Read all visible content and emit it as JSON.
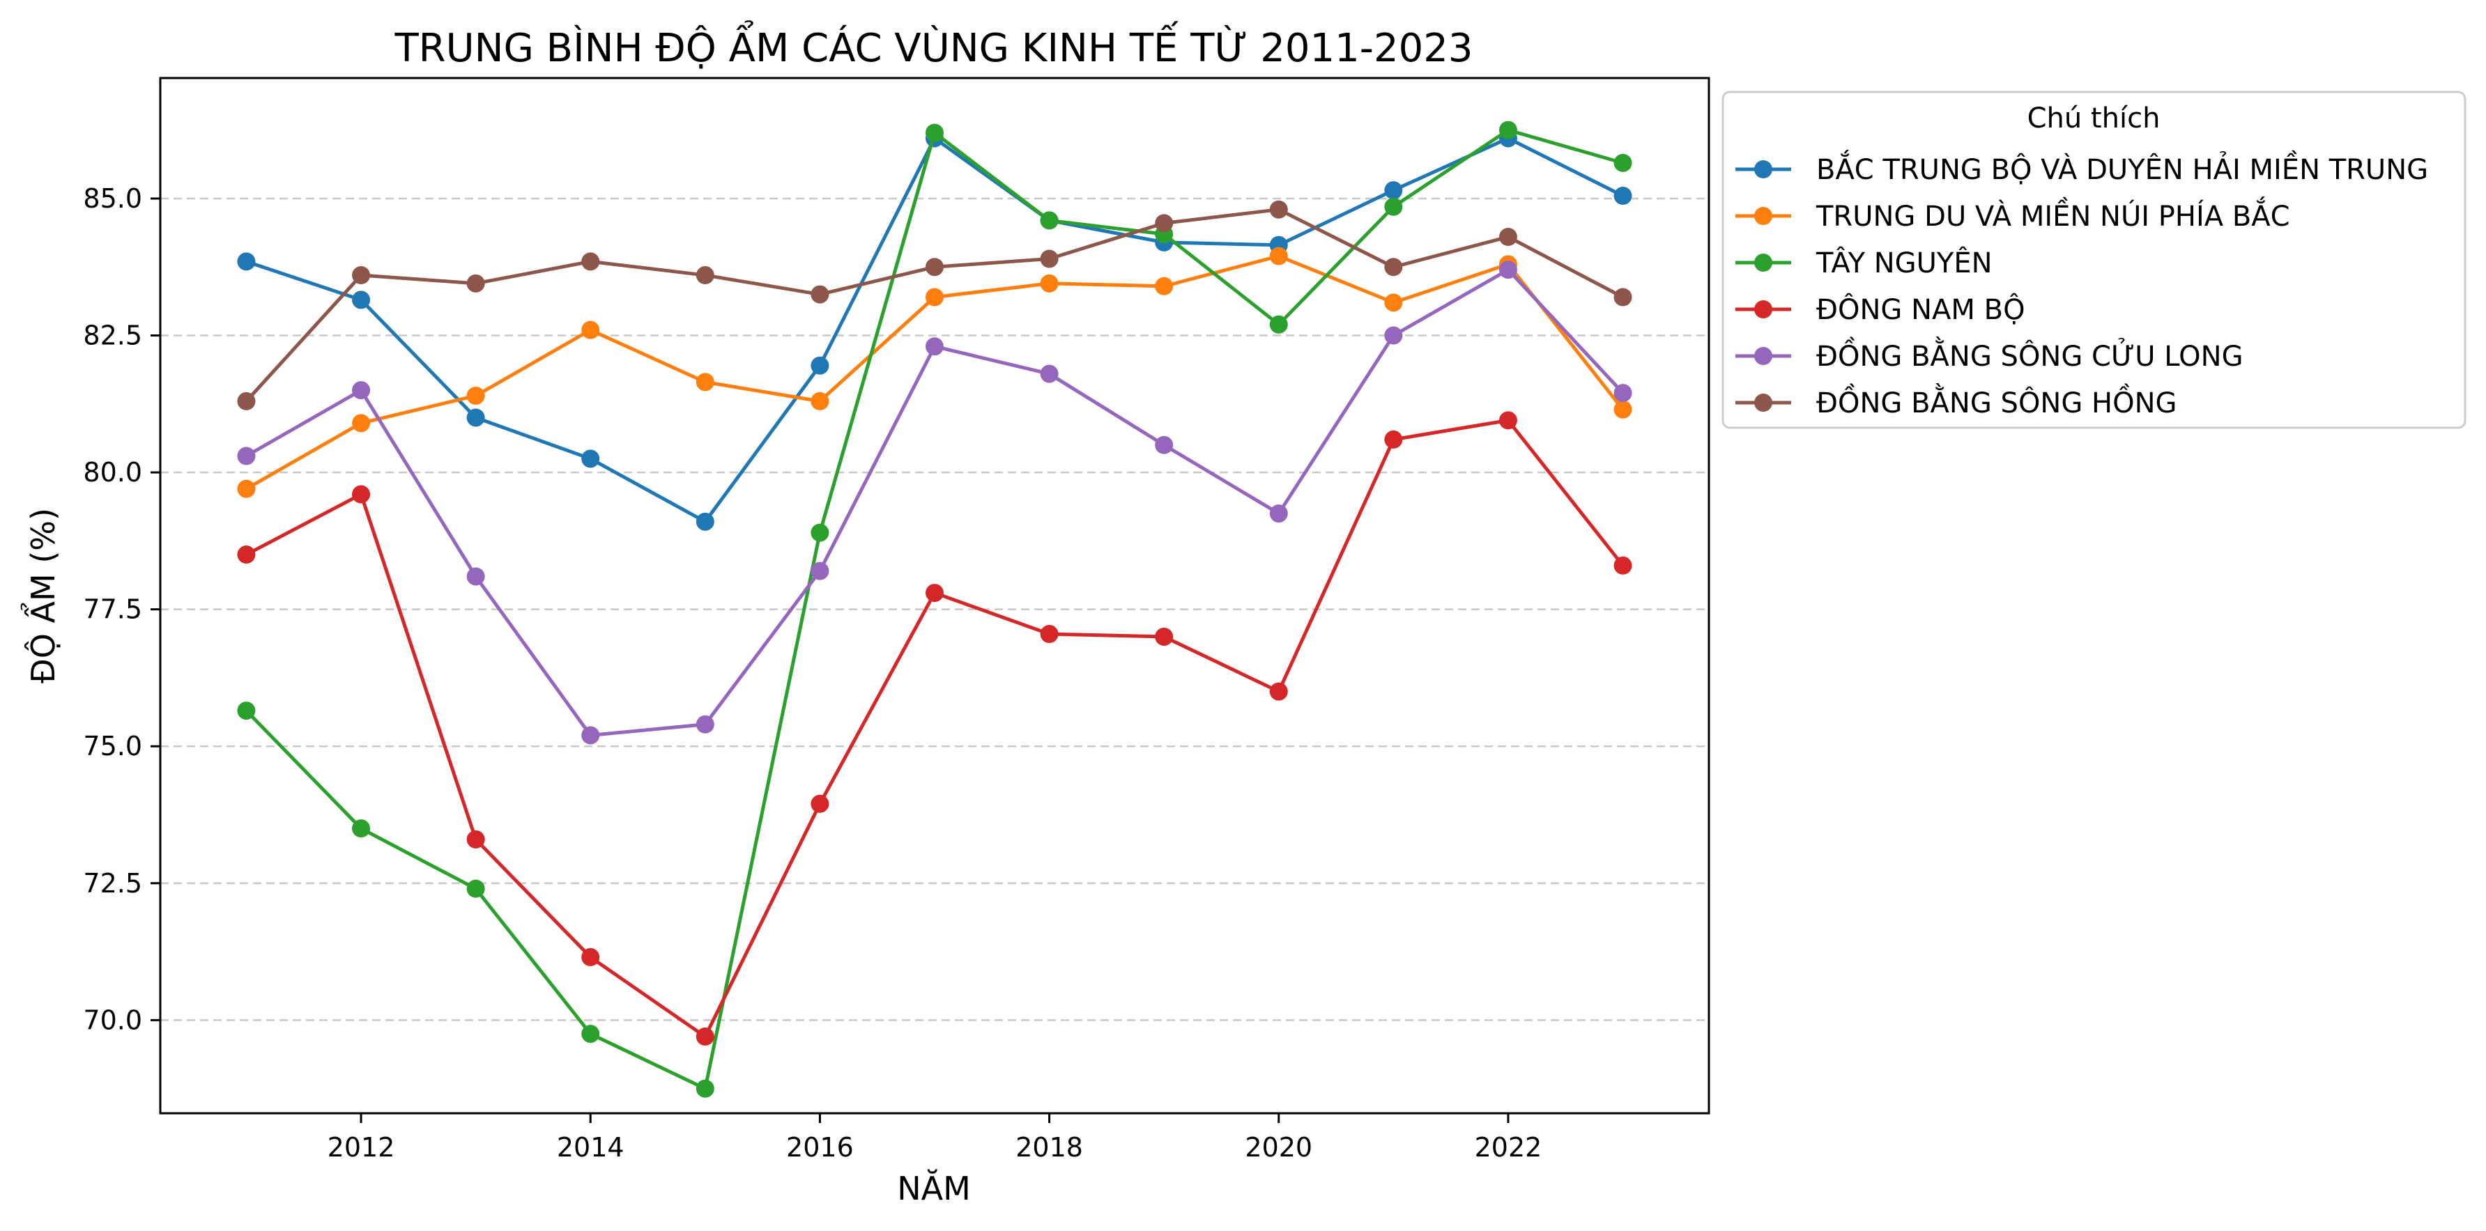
{
  "chart_data": {
    "type": "line",
    "title": "TRUNG BÌNH ĐỘ ẨM CÁC VÙNG KINH TẾ TỪ 2011-2023",
    "xlabel": "NĂM",
    "ylabel": "ĐỘ ẨM (%)",
    "xlim": [
      2010.25,
      2023.75
    ],
    "ylim": [
      68.3,
      87.2
    ],
    "x": [
      2011,
      2012,
      2013,
      2014,
      2015,
      2016,
      2017,
      2018,
      2019,
      2020,
      2021,
      2022,
      2023
    ],
    "x_ticks": [
      2012,
      2014,
      2016,
      2018,
      2020,
      2022
    ],
    "x_tick_labels": [
      "2012",
      "2014",
      "2016",
      "2018",
      "2020",
      "2022"
    ],
    "y_ticks": [
      70.0,
      72.5,
      75.0,
      77.5,
      80.0,
      82.5,
      85.0
    ],
    "y_tick_labels": [
      "70.0",
      "72.5",
      "75.0",
      "77.5",
      "80.0",
      "82.5",
      "85.0"
    ],
    "grid": {
      "axis": "y",
      "style": "dashed",
      "color": "#c8c8c8"
    },
    "legend": {
      "title": "Chú thích",
      "placement": "outside-top-right"
    },
    "series": [
      {
        "name": "BẮC TRUNG BỘ VÀ DUYÊN HẢI MIỀN TRUNG",
        "color": "#1f77b4",
        "values": [
          83.85,
          83.15,
          81.0,
          80.25,
          79.1,
          81.95,
          86.1,
          84.6,
          84.2,
          84.15,
          85.15,
          86.1,
          85.05
        ]
      },
      {
        "name": "TRUNG DU VÀ MIỀN NÚI PHÍA BẮC",
        "color": "#ff7f0e",
        "values": [
          79.7,
          80.9,
          81.4,
          82.6,
          81.65,
          81.3,
          83.2,
          83.45,
          83.4,
          83.95,
          83.1,
          83.8,
          81.15
        ]
      },
      {
        "name": "TÂY NGUYÊN",
        "color": "#2ca02c",
        "values": [
          75.65,
          73.5,
          72.4,
          69.75,
          68.75,
          78.9,
          86.2,
          84.6,
          84.35,
          82.7,
          84.85,
          86.25,
          85.65
        ]
      },
      {
        "name": "ĐÔNG NAM BỘ",
        "color": "#d62728",
        "values": [
          78.5,
          79.6,
          73.3,
          71.15,
          69.7,
          73.95,
          77.8,
          77.05,
          77.0,
          76.0,
          80.6,
          80.95,
          78.3
        ]
      },
      {
        "name": "ĐỒNG BẰNG SÔNG CỬU LONG",
        "color": "#9467bd",
        "values": [
          80.3,
          81.5,
          78.1,
          75.2,
          75.4,
          78.2,
          82.3,
          81.8,
          80.5,
          79.25,
          82.5,
          83.7,
          81.45
        ]
      },
      {
        "name": "ĐỒNG BẰNG SÔNG HỒNG",
        "color": "#8c564b",
        "values": [
          81.3,
          83.6,
          83.45,
          83.85,
          83.6,
          83.25,
          83.75,
          83.9,
          84.55,
          84.8,
          83.75,
          84.3,
          83.2
        ]
      }
    ]
  }
}
